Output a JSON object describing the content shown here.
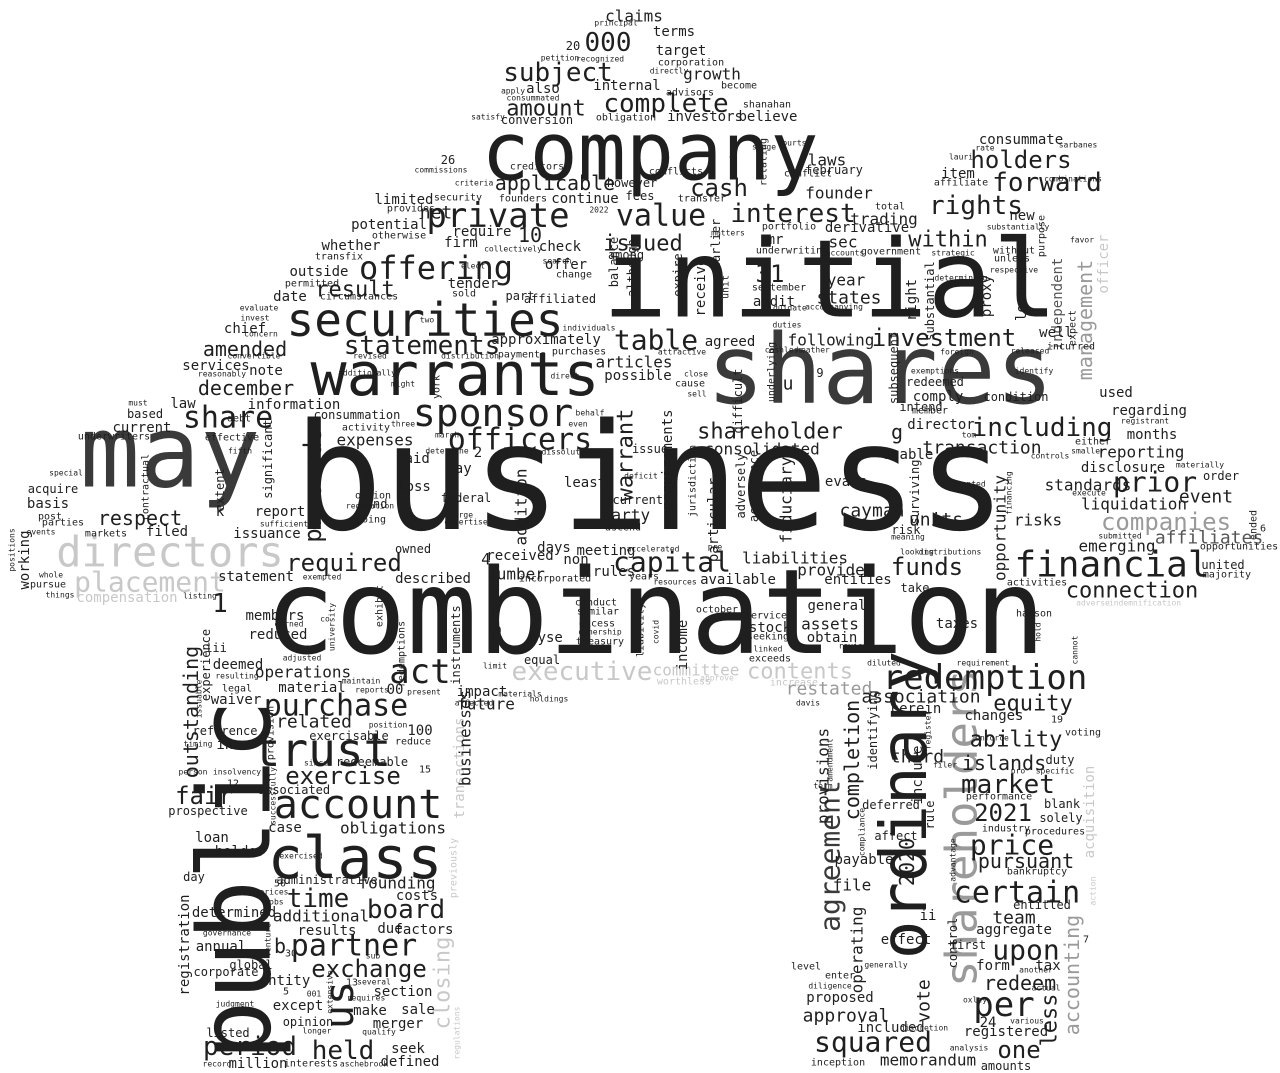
{
  "colors": {
    "background": "#ffffff",
    "dark": "#1f1f1f",
    "mid": "#3a3a3a",
    "gray": "#555555",
    "light": "#9a9a9a",
    "faint": "#c8c8c8"
  },
  "words": {
    "business": "business",
    "combination": "combination",
    "initial": "initial",
    "shares": "shares",
    "company": "company",
    "may": "may",
    "public": "public",
    "warrants": "warrants",
    "securities": "securities",
    "directors": "directors",
    "ordinary": "ordinary",
    "shareholders": "shareholders",
    "class": "class",
    "trust": "trust",
    "account": "account",
    "financial": "financial",
    "redemption": "redemption",
    "sponsor": "sponsor",
    "offering": "offering",
    "private": "private",
    "placement": "placement",
    "executive": "executive",
    "contents": "contents",
    "officers": "officers",
    "share": "share",
    "agreement": "agreement",
    "statements": "statements",
    "purchase": "purchase",
    "partner": "partner",
    "us": "us",
    "per": "per",
    "price": "price",
    "certain": "certain",
    "market": "market",
    "capital": "capital",
    "cash": "cash",
    "value": "value",
    "interest": "interest",
    "complete": "complete",
    "subject": "subject",
    "forward": "forward",
    "rights": "rights",
    "holders": "holders",
    "including": "including",
    "investment": "investment",
    "companies": "companies",
    "funds": "funds",
    "connection": "connection",
    "prior": "prior",
    "shareholder": "shareholder",
    "time": "time",
    "held": "held",
    "board": "board",
    "exchange": "exchange",
    "period": "period",
    "exercise": "exercise",
    "act": "act",
    "squared": "squared",
    "upon": "upon",
    "one": "one",
    "ability": "ability",
    "equity": "equity",
    "amount": "amount",
    "table": "table",
    "required": "required",
    "respect": "respect",
    "december": "december",
    "amended": "amended",
    "result": "result",
    "issued": "issued",
    "applicable": "applicable",
    "net": "net",
    "within": "within",
    "units": "units",
    "cayman": "cayman",
    "year2021": "2021",
    "islands": "islands",
    "fair": "fair",
    "proceeds": "proceeds",
    "outstanding": "outstanding",
    "warrant": "warrant",
    "restated": "restated",
    "accounting": "accounting",
    "management": "management",
    "officer": "officer",
    "closing": "closing",
    "compensation": "compensation",
    "committee": "committee",
    "transactions": "transactions",
    "acquisition": "acquisition",
    "independent": "independent",
    "claims": "claims",
    "num000": "000",
    "num10": "10",
    "num31": "31",
    "num1": "1",
    "num4": "4",
    "num100": "100",
    "num00": "00",
    "consummate": "consummate",
    "laws": "laws",
    "founder": "founder",
    "trading": "trading",
    "sec": "sec",
    "states": "states",
    "year": "year",
    "following": "following",
    "audit": "audit",
    "consolidated": "consolidated",
    "director": "director",
    "transaction": "transaction",
    "liquidation": "liquidation",
    "reporting": "reporting",
    "event": "event",
    "affiliates": "affiliates",
    "disclosure": "disclosure",
    "emerging": "emerging",
    "risks": "risks",
    "standards": "standards",
    "months": "months",
    "regarding": "regarding",
    "opportunity": "opportunity",
    "provisions": "provisions",
    "completion": "completion",
    "association": "association",
    "third": "third",
    "team": "team",
    "aggregate": "aggregate",
    "redeem": "redeem",
    "less": "less",
    "registered": "registered",
    "pursuant": "pursuant",
    "approval": "approval",
    "memorandum": "memorandum",
    "vote": "vote",
    "proposed": "proposed",
    "included": "included",
    "assets": "assets",
    "general": "general",
    "obtain": "obtain",
    "provide": "provide",
    "entities": "entities",
    "liabilities": "liabilities",
    "available": "available",
    "stock": "stock",
    "number": "number",
    "days": "days",
    "rules": "rules",
    "described": "described",
    "future": "future",
    "impact": "impact",
    "businesses": "businesses",
    "instruments": "instruments",
    "income": "income",
    "addition": "addition",
    "requirements": "requirements",
    "party": "party",
    "possible": "possible",
    "articles": "articles",
    "agreed": "agreed",
    "approximately": "approximately",
    "expenses": "expenses",
    "information": "information",
    "note": "note",
    "services": "services",
    "law": "law",
    "current": "current",
    "based": "based",
    "basis": "basis",
    "filed": "filed",
    "issuance": "issuance",
    "statement": "statement",
    "working": "working",
    "chief": "chief",
    "potential": "potential",
    "limited": "limited",
    "whether": "whether",
    "outside": "outside",
    "date": "date",
    "firm": "firm",
    "tender": "tender",
    "check": "check",
    "among": "among",
    "mr": "mr",
    "also": "also",
    "growth": "growth",
    "target": "target",
    "terms": "terms",
    "believe": "believe",
    "investors": "investors",
    "conversion": "conversion",
    "internal": "internal",
    "offer": "offer",
    "continue": "continue",
    "require": "require",
    "new": "new",
    "item": "item",
    "derivative": "derivative",
    "right": "right",
    "subsequent": "subsequent",
    "loans": "loans",
    "condition": "condition",
    "well": "well",
    "used": "used",
    "fiduciary": "fiduciary",
    "particular": "particular",
    "currently": "currently",
    "least": "least",
    "pay": "pay",
    "paid": "paid",
    "loss": "loss",
    "federal": "federal",
    "received": "received",
    "meeting": "meeting",
    "non": "non",
    "nyse": "nyse",
    "equal": "equal",
    "members": "members",
    "reduced": "reduced",
    "operations": "operations",
    "material": "material",
    "related": "related",
    "inc": "inc",
    "deemed": "deemed",
    "waiver": "waiver",
    "reference": "reference",
    "experience": "experience",
    "loan": "loan",
    "holder": "holder",
    "case": "case",
    "obligations": "obligations",
    "founding": "founding",
    "costs": "costs",
    "additional": "additional",
    "results": "results",
    "due": "due",
    "factors": "factors",
    "determined": "determined",
    "annual": "annual",
    "registration": "registration",
    "entity": "entity",
    "except": "except",
    "section": "section",
    "make": "make",
    "sale": "sale",
    "merger": "merger",
    "seek": "seek",
    "million": "million",
    "defined": "defined",
    "opinion": "opinion",
    "interests": "interests",
    "corporate": "corporate",
    "global": "global",
    "prospective": "prospective",
    "day": "day",
    "listed": "listed",
    "exercisable": "exercisable",
    "redeemable": "redeemable",
    "associated": "associated",
    "administrative": "administrative",
    "date2020": "2020",
    "payable": "payable",
    "file": "file",
    "operating": "operating",
    "effect": "effect",
    "control": "control",
    "first": "first",
    "form": "form",
    "tax": "tax",
    "amounts": "amounts",
    "changes": "changes",
    "herein": "herein",
    "duty": "duty",
    "blank": "blank",
    "solely": "solely",
    "entitled": "entitled",
    "bankruptcy": "bankruptcy",
    "procedures": "procedures",
    "performance": "performance",
    "industry": "industry",
    "taxes": "taxes",
    "unable": "unable",
    "comply": "comply",
    "redeemed": "redeemed",
    "intend": "intend",
    "evans": "evans",
    "surviving": "surviving",
    "affiliated": "affiliated",
    "part": "part",
    "payments": "payments",
    "purchases": "purchases",
    "receive": "receive",
    "balance": "balance",
    "although": "although",
    "earlier": "earlier",
    "unit": "unit",
    "expire": "expire",
    "underwriting": "underwriting",
    "september": "september",
    "february": "february",
    "conflict": "conflict",
    "however": "however",
    "fees": "fees",
    "conflicts": "conflicts",
    "transfer": "transfer",
    "creditors": "creditors",
    "founders": "founders",
    "security": "security",
    "provides": "provides",
    "otherwise": "otherwise",
    "permitted": "permitted",
    "circumstances": "circumstances",
    "transfix": "transfix",
    "sold": "sold",
    "change": "change",
    "evaluate": "evaluate",
    "reasonably": "reasonably",
    "convertible": "convertible",
    "consummation": "consummation",
    "activity": "activity",
    "effective": "effective",
    "contractual": "contractual",
    "acquire": "acquire",
    "special": "special",
    "post": "post",
    "parties": "parties",
    "markets": "markets",
    "whole": "whole",
    "pursue": "pursue",
    "things": "things",
    "sufficient": "sufficient",
    "extent": "extent",
    "significant": "significant",
    "underwriters": "underwriters",
    "report": "report",
    "fund": "fund",
    "option": "option",
    "going": "going",
    "owned": "owned",
    "incorporated": "incorporated",
    "years": "years",
    "conduct": "conduct",
    "excess": "excess",
    "similar": "similar",
    "treasury": "treasury",
    "ownership": "ownership",
    "liability": "liability",
    "covid": "covid",
    "october": "october",
    "service": "service",
    "seeking": "seeking",
    "exceeds": "exceeds",
    "linked": "linked",
    "accordance": "accordance",
    "adversely": "adversely",
    "jurisdiction": "jurisdiction",
    "difficult": "difficult",
    "underlying": "underlying",
    "cashless": "cashless",
    "duties": "duties",
    "heather": "heather",
    "liquidate": "liquidate",
    "accompanying": "accompanying",
    "accounts": "accounts",
    "government": "government",
    "portfolio": "portfolio",
    "total": "total",
    "mataters": "matters",
    "courts": "courts",
    "relating": "relating",
    "shanahan": "shanahan",
    "become": "become",
    "advisors": "advisors",
    "corporation": "corporation",
    "directly": "directly",
    "obligation": "obligation",
    "principal": "principal",
    "petition": "petition",
    "recognized": "recognized",
    "apply": "apply",
    "consummated": "consummated",
    "satisfy": "satisfy",
    "commissions": "commissions",
    "criteria": "criteria",
    "sarbanes": "sarbanes",
    "oxley": "oxley",
    "combinations": "combinations",
    "strategic": "strategic",
    "purpose": "purpose",
    "substantially": "substantially",
    "without": "without",
    "unless": "unless",
    "proxy": "proxy",
    "substantial": "substantial",
    "determining": "determining",
    "respective": "respective",
    "expect": "expect",
    "incurred": "incurred",
    "identify": "identify",
    "released": "released",
    "either": "either",
    "smaller": "smaller",
    "controls": "controls",
    "materially": "materially",
    "execute": "execute",
    "submitted": "submitted",
    "order": "order",
    "registrant": "registrant",
    "opportunities": "opportunities",
    "united": "united",
    "majority": "majority",
    "ended": "ended",
    "presented": "presented",
    "financing": "financing",
    "looking": "looking",
    "distributions": "distributions",
    "meaning": "meaning",
    "take": "take",
    "activities": "activities",
    "hasson": "hasson",
    "hold": "hold",
    "cannot": "cannot",
    "indemnification": "indemnification",
    "adverse": "adverse",
    "actual": "actual",
    "various": "various",
    "another": "another",
    "requirement": "requirement",
    "enforce": "enforce",
    "pro": "pro",
    "voting": "voting",
    "specific": "specific",
    "filer": "filer",
    "register": "register",
    "analysis": "analysis",
    "diligence": "diligence",
    "inception": "inception",
    "discretion": "discretion",
    "generally": "generally",
    "affect": "affect",
    "deferred": "deferred",
    "compliance": "compliance",
    "advantage": "advantage",
    "rule": "rule",
    "include": "include",
    "identifying": "identifying",
    "diluted": "diluted",
    "review": "review",
    "increase": "increase",
    "approve": "approve",
    "worthless": "worthless",
    "davis": "davis",
    "amendment": "amendment",
    "term": "term",
    "pre": "pre",
    "accelerated": "accelerated",
    "resources": "resources",
    "ascend": "ascend",
    "deficit": "deficit",
    "issue": "issue",
    "claim": "claim",
    "dissolution": "dissolution",
    "large": "large",
    "expertise": "expertise",
    "behalf": "behalf",
    "even": "even",
    "direct": "direct",
    "march": "march",
    "determine": "determine",
    "york": "york",
    "distribution": "distribution",
    "individuals": "individuals",
    "revised": "revised",
    "might": "might",
    "three": "three",
    "regulation": "regulation",
    "university": "university",
    "limit": "limit",
    "affected": "affected",
    "materials": "materials",
    "holdings": "holdings",
    "present": "present",
    "reports": "reports",
    "maintain": "maintain",
    "position": "position",
    "reduce": "reduce",
    "since": "since",
    "insolvency": "insolvency",
    "timing": "timing",
    "person": "person",
    "resulting": "resulting",
    "issuable": "issuable",
    "legal": "legal",
    "adjusted": "adjusted",
    "exempted": "exempted",
    "earned": "earned",
    "provision": "provision",
    "successfully": "successfully",
    "exercised": "exercised",
    "jobs": "jobs",
    "prices": "prices",
    "governance": "governance",
    "venture": "venture",
    "judgment": "judgment",
    "extensive": "extensive",
    "requires": "requires",
    "qualify": "qualify",
    "longer": "longer",
    "record": "record",
    "aschebrook": "aschebrook",
    "regulations": "regulations",
    "previously": "previously",
    "exhibit": "exhibit",
    "redemptions": "redemptions",
    "listing": "listing",
    "positions": "positions",
    "events": "events",
    "fifth": "fifth",
    "debt": "debt",
    "must": "must",
    "invest": "invest",
    "concern": "concern",
    "additionally": "additionally",
    "sub": "sub",
    "several": "several",
    "two": "two",
    "elect": "elect",
    "search": "search",
    "collectively": "collectively",
    "attractive": "attractive",
    "cause": "cause",
    "close": "close",
    "sell": "sell",
    "stage": "stage",
    "rate": "rate",
    "lauri": "lauri",
    "affiliate": "affiliate",
    "favor": "favor",
    "foreign": "foreign",
    "member": "member",
    "exemptions": "exemptions",
    "tom": "tom",
    "risk": "risk",
    "enter": "enter",
    "level": "level",
    "action": "action",
    "bank": "b",
    "letter_g": "g",
    "letter_u": "u",
    "letter_f": "f",
    "letter_k": "k",
    "letter_ii": "ii",
    "letter_iii": "iii",
    "num2": "2",
    "num3": "3",
    "num5": "5",
    "num7": "7",
    "num8": "8",
    "num9": "9",
    "num12": "12",
    "num13": "13",
    "num15": "15",
    "num19": "19",
    "num20": "20",
    "num24": "24",
    "num26": "26",
    "num30": "30",
    "num50": "50",
    "num0": "0",
    "num6": "6",
    "num001": "001",
    "num2022": "2022",
    "co": "co"
  }
}
